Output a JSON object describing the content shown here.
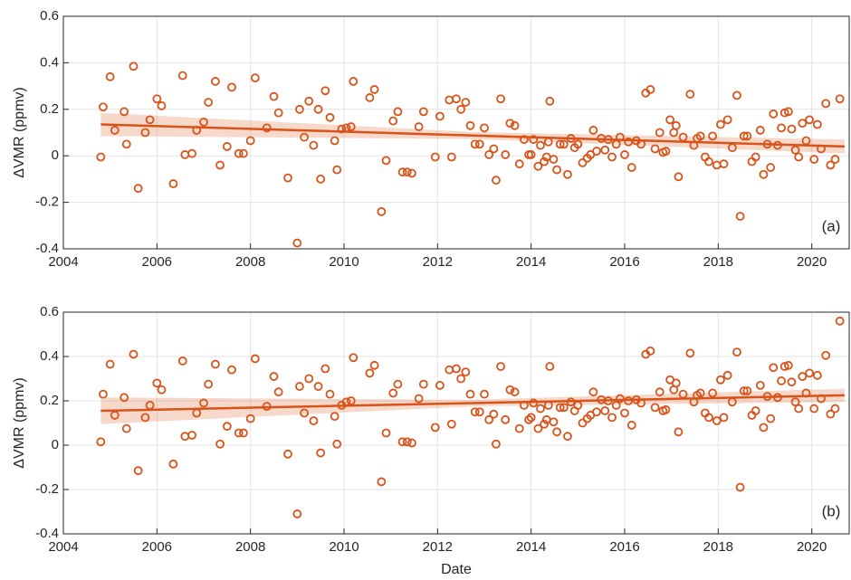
{
  "chart_data": [
    {
      "type": "scatter",
      "ylabel": "ΔVMR (ppmv)",
      "annotation": "(a)",
      "color": "#d95319",
      "grid": true,
      "xlim": [
        2004,
        2020.8
      ],
      "ylim": [
        -0.4,
        0.6
      ],
      "xticks": [
        2004,
        2006,
        2008,
        2010,
        2012,
        2014,
        2016,
        2018,
        2020
      ],
      "yticks": [
        -0.4,
        -0.2,
        0,
        0.2,
        0.4,
        0.6
      ],
      "x": [
        2004.8,
        2004.85,
        2005.0,
        2005.1,
        2005.3,
        2005.35,
        2005.5,
        2005.6,
        2005.75,
        2005.85,
        2006.0,
        2006.1,
        2006.35,
        2006.55,
        2006.6,
        2006.75,
        2006.85,
        2007.0,
        2007.1,
        2007.25,
        2007.35,
        2007.5,
        2007.6,
        2007.75,
        2007.85,
        2008.0,
        2008.1,
        2008.35,
        2008.5,
        2008.6,
        2008.8,
        2009.0,
        2009.05,
        2009.15,
        2009.25,
        2009.35,
        2009.45,
        2009.5,
        2009.6,
        2009.7,
        2009.8,
        2009.85,
        2009.95,
        2010.05,
        2010.15,
        2010.2,
        2010.55,
        2010.65,
        2010.8,
        2010.9,
        2011.05,
        2011.15,
        2011.25,
        2011.35,
        2011.45,
        2011.6,
        2011.7,
        2011.95,
        2012.05,
        2012.25,
        2012.3,
        2012.4,
        2012.5,
        2012.6,
        2012.7,
        2012.8,
        2012.9,
        2013.0,
        2013.1,
        2013.2,
        2013.25,
        2013.35,
        2013.45,
        2013.55,
        2013.65,
        2013.75,
        2013.85,
        2013.95,
        2014.0,
        2014.05,
        2014.15,
        2014.2,
        2014.28,
        2014.33,
        2014.37,
        2014.4,
        2014.48,
        2014.55,
        2014.62,
        2014.7,
        2014.78,
        2014.85,
        2014.93,
        2015.0,
        2015.1,
        2015.2,
        2015.27,
        2015.33,
        2015.4,
        2015.5,
        2015.58,
        2015.65,
        2015.73,
        2015.82,
        2015.9,
        2016.0,
        2016.08,
        2016.15,
        2016.25,
        2016.35,
        2016.45,
        2016.55,
        2016.65,
        2016.75,
        2016.82,
        2016.88,
        2016.97,
        2017.05,
        2017.1,
        2017.15,
        2017.25,
        2017.4,
        2017.48,
        2017.55,
        2017.62,
        2017.72,
        2017.8,
        2017.88,
        2017.97,
        2018.05,
        2018.12,
        2018.2,
        2018.3,
        2018.4,
        2018.47,
        2018.55,
        2018.62,
        2018.72,
        2018.8,
        2018.9,
        2018.97,
        2019.05,
        2019.12,
        2019.18,
        2019.27,
        2019.35,
        2019.42,
        2019.5,
        2019.57,
        2019.65,
        2019.72,
        2019.8,
        2019.88,
        2019.95,
        2020.05,
        2020.12,
        2020.2,
        2020.3,
        2020.4,
        2020.5,
        2020.6
      ],
      "values": [
        -0.005,
        0.21,
        0.34,
        0.11,
        0.19,
        0.05,
        0.385,
        -0.14,
        0.1,
        0.155,
        0.245,
        0.215,
        -0.12,
        0.345,
        0.005,
        0.01,
        0.11,
        0.145,
        0.23,
        0.32,
        -0.04,
        0.04,
        0.295,
        0.01,
        0.01,
        0.065,
        0.335,
        0.12,
        0.255,
        0.185,
        -0.095,
        -0.375,
        0.2,
        0.08,
        0.235,
        0.045,
        0.2,
        -0.1,
        0.28,
        0.165,
        0.065,
        -0.06,
        0.115,
        0.12,
        0.125,
        0.32,
        0.25,
        0.285,
        -0.24,
        -0.02,
        0.15,
        0.19,
        -0.07,
        -0.07,
        -0.075,
        0.125,
        0.19,
        -0.005,
        0.17,
        0.24,
        -0.005,
        0.245,
        0.2,
        0.23,
        0.13,
        0.05,
        0.05,
        0.12,
        0.005,
        0.03,
        -0.105,
        0.245,
        0.005,
        0.14,
        0.13,
        -0.035,
        0.07,
        0.005,
        0.005,
        0.07,
        -0.045,
        0.045,
        -0.025,
        -0.005,
        0.06,
        0.235,
        -0.015,
        -0.06,
        0.05,
        0.05,
        -0.08,
        0.075,
        0.035,
        0.05,
        -0.03,
        -0.01,
        0.005,
        0.11,
        0.02,
        0.075,
        0.025,
        0.07,
        -0.005,
        0.05,
        0.08,
        0.005,
        0.06,
        -0.05,
        0.065,
        0.05,
        0.27,
        0.285,
        0.03,
        0.1,
        0.015,
        0.02,
        0.155,
        0.1,
        0.13,
        -0.09,
        0.08,
        0.265,
        0.045,
        0.075,
        0.085,
        -0.005,
        -0.025,
        0.085,
        -0.04,
        0.135,
        -0.035,
        0.155,
        0.035,
        0.26,
        -0.26,
        0.085,
        0.085,
        -0.025,
        -0.005,
        0.11,
        -0.08,
        0.05,
        -0.05,
        0.18,
        0.045,
        0.12,
        0.185,
        0.19,
        0.115,
        0.025,
        -0.005,
        0.14,
        0.065,
        0.155,
        -0.015,
        0.135,
        0.03,
        0.225,
        -0.04,
        -0.015,
        0.245
      ],
      "fit": {
        "x": [
          2004.8,
          2012.75,
          2020.7
        ],
        "values": [
          0.135,
          0.0875,
          0.04
        ],
        "band_lower": [
          0.085,
          0.0725,
          0.01
        ],
        "band_upper": [
          0.185,
          0.1025,
          0.07
        ]
      }
    },
    {
      "type": "scatter",
      "ylabel": "ΔVMR (ppmv)",
      "xlabel": "Date",
      "annotation": "(b)",
      "color": "#d95319",
      "grid": true,
      "xlim": [
        2004,
        2020.8
      ],
      "ylim": [
        -0.4,
        0.6
      ],
      "xticks": [
        2004,
        2006,
        2008,
        2010,
        2012,
        2014,
        2016,
        2018,
        2020
      ],
      "yticks": [
        -0.4,
        -0.2,
        0,
        0.2,
        0.4,
        0.6
      ],
      "x": [
        2004.8,
        2004.85,
        2005.0,
        2005.1,
        2005.3,
        2005.35,
        2005.5,
        2005.6,
        2005.75,
        2005.85,
        2006.0,
        2006.1,
        2006.35,
        2006.55,
        2006.6,
        2006.75,
        2006.85,
        2007.0,
        2007.1,
        2007.25,
        2007.35,
        2007.5,
        2007.6,
        2007.75,
        2007.85,
        2008.0,
        2008.1,
        2008.35,
        2008.5,
        2008.6,
        2008.8,
        2009.0,
        2009.05,
        2009.15,
        2009.25,
        2009.35,
        2009.45,
        2009.5,
        2009.6,
        2009.7,
        2009.8,
        2009.85,
        2009.95,
        2010.05,
        2010.15,
        2010.2,
        2010.55,
        2010.65,
        2010.8,
        2010.9,
        2011.05,
        2011.15,
        2011.25,
        2011.35,
        2011.45,
        2011.6,
        2011.7,
        2011.95,
        2012.05,
        2012.25,
        2012.3,
        2012.4,
        2012.5,
        2012.6,
        2012.7,
        2012.8,
        2012.9,
        2013.0,
        2013.1,
        2013.2,
        2013.25,
        2013.35,
        2013.45,
        2013.55,
        2013.65,
        2013.75,
        2013.85,
        2013.95,
        2014.0,
        2014.05,
        2014.15,
        2014.2,
        2014.28,
        2014.33,
        2014.37,
        2014.4,
        2014.48,
        2014.55,
        2014.62,
        2014.7,
        2014.78,
        2014.85,
        2014.93,
        2015.0,
        2015.1,
        2015.2,
        2015.27,
        2015.33,
        2015.4,
        2015.5,
        2015.58,
        2015.65,
        2015.73,
        2015.82,
        2015.9,
        2016.0,
        2016.08,
        2016.15,
        2016.25,
        2016.35,
        2016.45,
        2016.55,
        2016.65,
        2016.75,
        2016.82,
        2016.88,
        2016.97,
        2017.05,
        2017.1,
        2017.15,
        2017.25,
        2017.4,
        2017.48,
        2017.55,
        2017.62,
        2017.72,
        2017.8,
        2017.88,
        2017.97,
        2018.05,
        2018.12,
        2018.2,
        2018.3,
        2018.4,
        2018.47,
        2018.55,
        2018.62,
        2018.72,
        2018.8,
        2018.9,
        2018.97,
        2019.05,
        2019.12,
        2019.18,
        2019.27,
        2019.35,
        2019.42,
        2019.5,
        2019.57,
        2019.65,
        2019.72,
        2019.8,
        2019.88,
        2019.95,
        2020.05,
        2020.12,
        2020.2,
        2020.3,
        2020.4,
        2020.5,
        2020.6
      ],
      "values": [
        0.015,
        0.23,
        0.365,
        0.135,
        0.215,
        0.075,
        0.41,
        -0.115,
        0.125,
        0.18,
        0.28,
        0.25,
        -0.085,
        0.38,
        0.04,
        0.045,
        0.145,
        0.19,
        0.275,
        0.365,
        0.005,
        0.085,
        0.34,
        0.055,
        0.055,
        0.12,
        0.39,
        0.175,
        0.31,
        0.24,
        -0.04,
        -0.31,
        0.265,
        0.145,
        0.3,
        0.11,
        0.265,
        -0.035,
        0.345,
        0.23,
        0.13,
        0.005,
        0.18,
        0.195,
        0.2,
        0.395,
        0.325,
        0.36,
        -0.165,
        0.055,
        0.235,
        0.275,
        0.015,
        0.015,
        0.01,
        0.21,
        0.275,
        0.08,
        0.27,
        0.34,
        0.095,
        0.345,
        0.3,
        0.33,
        0.23,
        0.15,
        0.15,
        0.23,
        0.115,
        0.14,
        0.005,
        0.355,
        0.115,
        0.25,
        0.24,
        0.075,
        0.18,
        0.115,
        0.125,
        0.19,
        0.075,
        0.165,
        0.095,
        0.115,
        0.18,
        0.355,
        0.105,
        0.06,
        0.17,
        0.17,
        0.04,
        0.195,
        0.155,
        0.18,
        0.1,
        0.12,
        0.135,
        0.24,
        0.15,
        0.205,
        0.155,
        0.2,
        0.125,
        0.18,
        0.21,
        0.145,
        0.2,
        0.09,
        0.205,
        0.19,
        0.41,
        0.425,
        0.17,
        0.24,
        0.155,
        0.16,
        0.295,
        0.25,
        0.28,
        0.06,
        0.23,
        0.415,
        0.195,
        0.225,
        0.235,
        0.145,
        0.125,
        0.235,
        0.11,
        0.295,
        0.125,
        0.315,
        0.195,
        0.42,
        -0.19,
        0.245,
        0.245,
        0.135,
        0.155,
        0.27,
        0.08,
        0.22,
        0.12,
        0.35,
        0.215,
        0.29,
        0.355,
        0.36,
        0.285,
        0.195,
        0.165,
        0.31,
        0.235,
        0.325,
        0.165,
        0.315,
        0.21,
        0.405,
        0.14,
        0.165,
        0.56
      ],
      "fit": {
        "x": [
          2004.8,
          2012.75,
          2020.7
        ],
        "values": [
          0.155,
          0.19,
          0.225
        ],
        "band_lower": [
          0.095,
          0.175,
          0.195
        ],
        "band_upper": [
          0.215,
          0.205,
          0.255
        ]
      }
    }
  ]
}
